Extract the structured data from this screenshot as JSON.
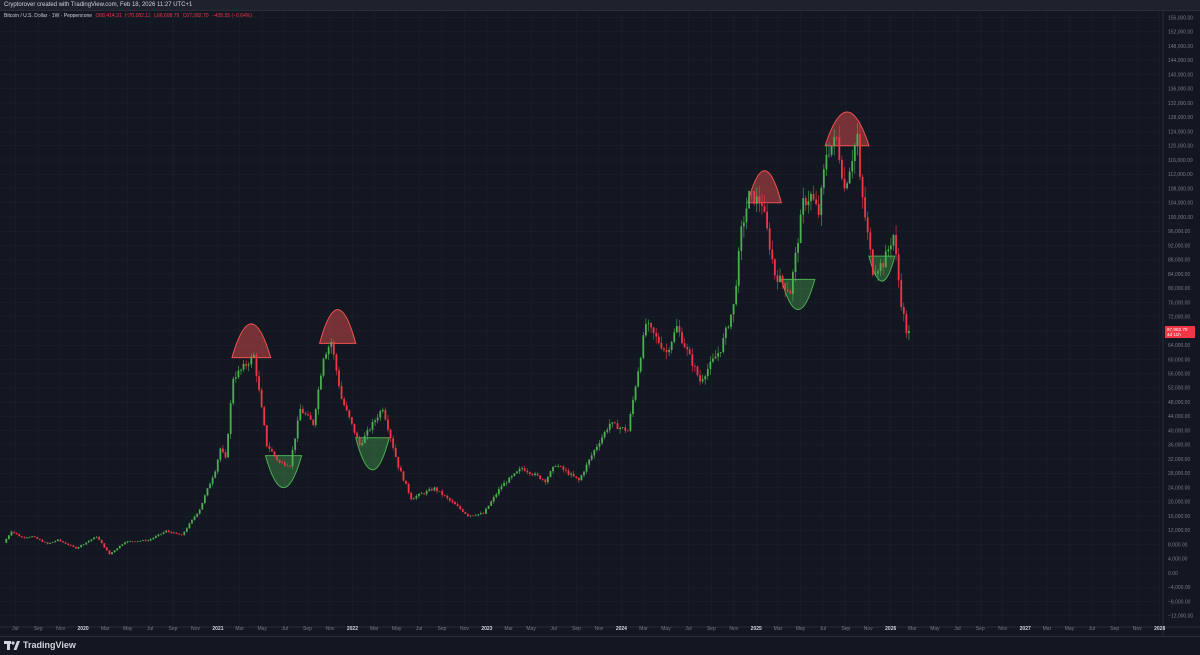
{
  "header": {
    "attribution": "Cryptorover created with TradingView.com, Feb 18, 2026 11:27 UTC+1"
  },
  "legend": {
    "symbol": "Bitcoin / U.S. Dollar · 1W · Pepperstone",
    "open": "O68,414.31",
    "high": "H70,082.12",
    "low": "L66,608.79",
    "close": "C67,982.70",
    "change": "−435.55 (−0.64%)"
  },
  "price_tag": {
    "price": "67,982.70",
    "countdown": "4d 11h"
  },
  "footer": {
    "brand": "TradingView"
  },
  "colors": {
    "background": "#131722",
    "up": "#4caf50",
    "down": "#f23645",
    "grid": "#1f2330",
    "axis_text": "#787b86",
    "top_shape": "#ef5350",
    "bottom_shape": "#4caf50"
  },
  "chart_data": {
    "type": "candlestick",
    "yunit": "USD",
    "ylim": [
      -14000,
      157000
    ],
    "y_ticks": [
      -12000,
      -8000,
      -4000,
      0,
      4000,
      8000,
      12000,
      16000,
      20000,
      24000,
      28000,
      32000,
      36000,
      40000,
      44000,
      48000,
      52000,
      56000,
      60000,
      64000,
      68000,
      72000,
      76000,
      80000,
      84000,
      88000,
      92000,
      96000,
      100000,
      104000,
      108000,
      112000,
      116000,
      120000,
      124000,
      128000,
      132000,
      136000,
      140000,
      144000,
      148000,
      152000,
      156000
    ],
    "y_tick_labels": [
      "−12,000.00",
      "−8,000.00",
      "−4,000.00",
      "0.00",
      "4,000.00",
      "8,000.00",
      "12,000.00",
      "16,000.00",
      "20,000.00",
      "24,000.00",
      "28,000.00",
      "32,000.00",
      "36,000.00",
      "40,000.00",
      "44,000.00",
      "48,000.00",
      "52,000.00",
      "56,000.00",
      "60,000.00",
      "64,000.00",
      "68,000.00",
      "72,000.00",
      "76,000.00",
      "80,000.00",
      "84,000.00",
      "88,000.00",
      "92,000.00",
      "96,000.00",
      "100,000.00",
      "104,000.00",
      "108,000.00",
      "112,000.00",
      "116,000.00",
      "120,000.00",
      "124,000.00",
      "128,000.00",
      "132,000.00",
      "136,000.00",
      "140,000.00",
      "144,000.00",
      "148,000.00",
      "152,000.00",
      "156,000.00"
    ],
    "x_ticks": [
      {
        "label": "Jul",
        "date": "2019-07-01"
      },
      {
        "label": "Sep",
        "date": "2019-09-01"
      },
      {
        "label": "Nov",
        "date": "2019-11-01"
      },
      {
        "label": "2020",
        "date": "2020-01-01"
      },
      {
        "label": "Mar",
        "date": "2020-03-01"
      },
      {
        "label": "May",
        "date": "2020-05-01"
      },
      {
        "label": "Jul",
        "date": "2020-07-01"
      },
      {
        "label": "Sep",
        "date": "2020-09-01"
      },
      {
        "label": "Nov",
        "date": "2020-11-01"
      },
      {
        "label": "2021",
        "date": "2021-01-01"
      },
      {
        "label": "Mar",
        "date": "2021-03-01"
      },
      {
        "label": "May",
        "date": "2021-05-01"
      },
      {
        "label": "Jul",
        "date": "2021-07-01"
      },
      {
        "label": "Sep",
        "date": "2021-09-01"
      },
      {
        "label": "Nov",
        "date": "2021-11-01"
      },
      {
        "label": "2022",
        "date": "2022-01-01"
      },
      {
        "label": "Mar",
        "date": "2022-03-01"
      },
      {
        "label": "May",
        "date": "2022-05-01"
      },
      {
        "label": "Jul",
        "date": "2022-07-01"
      },
      {
        "label": "Sep",
        "date": "2022-09-01"
      },
      {
        "label": "Nov",
        "date": "2022-11-01"
      },
      {
        "label": "2023",
        "date": "2023-01-01"
      },
      {
        "label": "Mar",
        "date": "2023-03-01"
      },
      {
        "label": "May",
        "date": "2023-05-01"
      },
      {
        "label": "Jul",
        "date": "2023-07-01"
      },
      {
        "label": "Sep",
        "date": "2023-09-01"
      },
      {
        "label": "Nov",
        "date": "2023-11-01"
      },
      {
        "label": "2024",
        "date": "2024-01-01"
      },
      {
        "label": "Mar",
        "date": "2024-03-01"
      },
      {
        "label": "May",
        "date": "2024-05-01"
      },
      {
        "label": "Jul",
        "date": "2024-07-01"
      },
      {
        "label": "Sep",
        "date": "2024-09-01"
      },
      {
        "label": "Nov",
        "date": "2024-11-01"
      },
      {
        "label": "2025",
        "date": "2025-01-01"
      },
      {
        "label": "Mar",
        "date": "2025-03-01"
      },
      {
        "label": "May",
        "date": "2025-05-01"
      },
      {
        "label": "Jul",
        "date": "2025-07-01"
      },
      {
        "label": "Sep",
        "date": "2025-09-01"
      },
      {
        "label": "Nov",
        "date": "2025-11-01"
      },
      {
        "label": "2026",
        "date": "2026-01-01"
      },
      {
        "label": "Mar",
        "date": "2026-03-01"
      },
      {
        "label": "May",
        "date": "2026-05-01"
      },
      {
        "label": "Jul",
        "date": "2026-07-01"
      },
      {
        "label": "Sep",
        "date": "2026-09-01"
      },
      {
        "label": "Nov",
        "date": "2026-11-01"
      },
      {
        "label": "2027",
        "date": "2027-01-01"
      },
      {
        "label": "Mar",
        "date": "2027-03-01"
      },
      {
        "label": "May",
        "date": "2027-05-01"
      },
      {
        "label": "Jul",
        "date": "2027-07-01"
      },
      {
        "label": "Sep",
        "date": "2027-09-01"
      },
      {
        "label": "Nov",
        "date": "2027-11-01"
      },
      {
        "label": "2028",
        "date": "2028-01-01"
      }
    ],
    "price_path": [
      [
        "2019-06-03",
        8500
      ],
      [
        "2019-06-24",
        11800
      ],
      [
        "2019-07-22",
        10000
      ],
      [
        "2019-08-19",
        10300
      ],
      [
        "2019-09-30",
        8200
      ],
      [
        "2019-10-28",
        9300
      ],
      [
        "2019-12-16",
        7000
      ],
      [
        "2020-02-10",
        10300
      ],
      [
        "2020-03-16",
        5300
      ],
      [
        "2020-04-27",
        8800
      ],
      [
        "2020-06-29",
        9200
      ],
      [
        "2020-08-17",
        11800
      ],
      [
        "2020-09-28",
        10600
      ],
      [
        "2020-11-16",
        18000
      ],
      [
        "2020-12-28",
        29000
      ],
      [
        "2021-01-11",
        35000
      ],
      [
        "2021-01-25",
        32000
      ],
      [
        "2021-02-15",
        55000
      ],
      [
        "2021-03-08",
        57000
      ],
      [
        "2021-04-12",
        61000
      ],
      [
        "2021-05-17",
        36000
      ],
      [
        "2021-06-21",
        31000
      ],
      [
        "2021-07-19",
        30500
      ],
      [
        "2021-08-16",
        46000
      ],
      [
        "2021-09-20",
        42000
      ],
      [
        "2021-10-18",
        61000
      ],
      [
        "2021-11-08",
        65000
      ],
      [
        "2021-12-06",
        49000
      ],
      [
        "2022-01-24",
        36000
      ],
      [
        "2022-03-28",
        46500
      ],
      [
        "2022-05-09",
        30000
      ],
      [
        "2022-06-13",
        21000
      ],
      [
        "2022-08-15",
        23800
      ],
      [
        "2022-10-10",
        19200
      ],
      [
        "2022-11-14",
        16200
      ],
      [
        "2022-12-26",
        16700
      ],
      [
        "2023-02-13",
        24500
      ],
      [
        "2023-04-10",
        29500
      ],
      [
        "2023-06-12",
        26000
      ],
      [
        "2023-07-10",
        30500
      ],
      [
        "2023-09-11",
        26000
      ],
      [
        "2023-10-23",
        34500
      ],
      [
        "2023-12-04",
        42000
      ],
      [
        "2024-01-22",
        40000
      ],
      [
        "2024-03-11",
        70000
      ],
      [
        "2024-05-06",
        62000
      ],
      [
        "2024-06-03",
        69000
      ],
      [
        "2024-08-05",
        54000
      ],
      [
        "2024-09-30",
        63000
      ],
      [
        "2024-11-04",
        75000
      ],
      [
        "2024-11-25",
        96000
      ],
      [
        "2024-12-16",
        106000
      ],
      [
        "2025-01-20",
        104000
      ],
      [
        "2025-02-24",
        84000
      ],
      [
        "2025-04-07",
        79000
      ],
      [
        "2025-05-12",
        104000
      ],
      [
        "2025-06-02",
        106000
      ],
      [
        "2025-06-23",
        101000
      ],
      [
        "2025-07-14",
        118000
      ],
      [
        "2025-08-11",
        122000
      ],
      [
        "2025-09-01",
        108000
      ],
      [
        "2025-10-06",
        123000
      ],
      [
        "2025-10-13",
        110000
      ],
      [
        "2025-11-17",
        85000
      ],
      [
        "2025-12-15",
        87000
      ],
      [
        "2026-01-12",
        95000
      ],
      [
        "2026-02-02",
        76000
      ],
      [
        "2026-02-16",
        67982
      ]
    ],
    "annotations": [
      {
        "kind": "top",
        "start": "2021-02-08",
        "end": "2021-05-24",
        "base": 60500,
        "apex": 70000
      },
      {
        "kind": "top",
        "start": "2021-10-04",
        "end": "2022-01-10",
        "base": 64500,
        "apex": 74000
      },
      {
        "kind": "top",
        "start": "2024-12-09",
        "end": "2025-03-10",
        "base": 104000,
        "apex": 113000
      },
      {
        "kind": "top",
        "start": "2025-07-07",
        "end": "2025-11-03",
        "base": 120000,
        "apex": 129500
      },
      {
        "kind": "bottom",
        "start": "2021-05-10",
        "end": "2021-08-16",
        "base": 33000,
        "apex": 24000
      },
      {
        "kind": "bottom",
        "start": "2022-01-10",
        "end": "2022-04-11",
        "base": 38000,
        "apex": 29000
      },
      {
        "kind": "bottom",
        "start": "2025-03-10",
        "end": "2025-06-09",
        "base": 82500,
        "apex": 74000
      },
      {
        "kind": "bottom",
        "start": "2025-11-03",
        "end": "2026-01-12",
        "base": 89000,
        "apex": 82000
      }
    ]
  }
}
